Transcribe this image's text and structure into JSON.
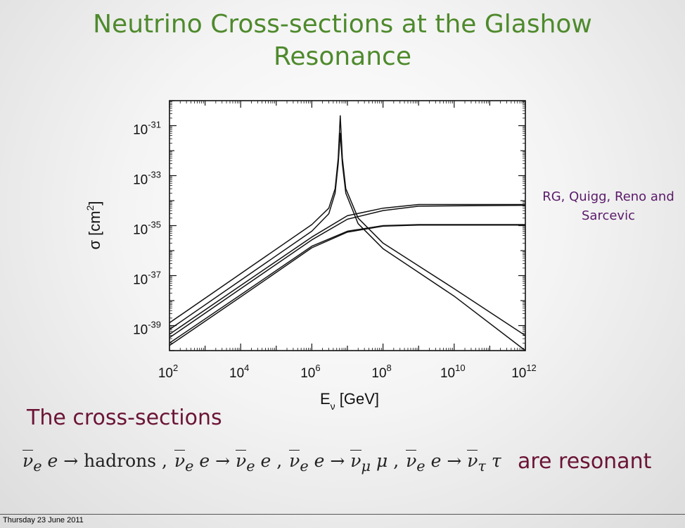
{
  "slide": {
    "title_line1": "Neutrino Cross-sections at the Glashow",
    "title_line2": "Resonance",
    "citation_line1": "RG, Quigg, Reno and",
    "citation_line2": "Sarcevic",
    "cross_sections_text": "The cross-sections",
    "resonant_text": "are resonant",
    "processes": [
      "hadrons",
      "e",
      "μ",
      "τ"
    ],
    "footer_date": "Thursday 23 June 2011"
  },
  "colors": {
    "title": "#4e8a2c",
    "emphasis": "#6b1436",
    "citation": "#5a1a6a"
  },
  "chart_data": {
    "type": "line",
    "xlabel": "E",
    "xlabel_sub": "ν",
    "xlabel_unit": " [GeV]",
    "ylabel": "σ [cm",
    "ylabel_sup": "2",
    "ylabel_end": "]",
    "x_scale": "log",
    "y_scale": "log",
    "xlim": [
      100,
      1000000000000.0
    ],
    "ylim": [
      1e-40,
      1e-30
    ],
    "x_ticks": [
      {
        "base": "10",
        "exp": "2",
        "value": 100
      },
      {
        "base": "10",
        "exp": "4",
        "value": 10000.0
      },
      {
        "base": "10",
        "exp": "6",
        "value": 1000000.0
      },
      {
        "base": "10",
        "exp": "8",
        "value": 100000000.0
      },
      {
        "base": "10",
        "exp": "10",
        "value": 10000000000.0
      },
      {
        "base": "10",
        "exp": "12",
        "value": 1000000000000.0
      }
    ],
    "y_ticks": [
      {
        "base": "10",
        "exp": "-31",
        "value": 1e-31
      },
      {
        "base": "10",
        "exp": "-33",
        "value": 1e-33
      },
      {
        "base": "10",
        "exp": "-35",
        "value": 1e-35
      },
      {
        "base": "10",
        "exp": "-37",
        "value": 1e-37
      },
      {
        "base": "10",
        "exp": "-39",
        "value": 1e-39
      }
    ],
    "series": [
      {
        "values": [
          [
            100,
            1.3e-39
          ],
          [
            10000.0,
            1.2e-37
          ],
          [
            1000000.0,
            1.1e-35
          ],
          [
            3000000.0,
            5e-35
          ],
          [
            4500000.0,
            3e-34
          ],
          [
            5500000.0,
            5e-33
          ],
          [
            6300000.0,
            2.5e-31
          ],
          [
            7200000.0,
            5e-33
          ],
          [
            9000000.0,
            3e-34
          ],
          [
            20000000.0,
            2e-35
          ],
          [
            100000000.0,
            2e-36
          ],
          [
            10000000000.0,
            3e-38
          ],
          [
            1000000000000.0,
            4e-40
          ]
        ]
      },
      {
        "values": [
          [
            100,
            7e-40
          ],
          [
            10000.0,
            6.5e-38
          ],
          [
            1000000.0,
            6e-36
          ],
          [
            3000000.0,
            3e-35
          ],
          [
            4500000.0,
            2e-34
          ],
          [
            5500000.0,
            3e-33
          ],
          [
            6300000.0,
            5e-32
          ],
          [
            7200000.0,
            3e-33
          ],
          [
            9000000.0,
            2e-34
          ],
          [
            20000000.0,
            1.2e-35
          ],
          [
            100000000.0,
            1.2e-36
          ],
          [
            10000000000.0,
            1.5e-38
          ],
          [
            1000000000000.0,
            1e-40
          ]
        ]
      },
      {
        "values": [
          [
            100,
            4.5e-40
          ],
          [
            10000.0,
            4e-38
          ],
          [
            1000000.0,
            3.5e-36
          ],
          [
            10000000.0,
            2.5e-35
          ],
          [
            100000000.0,
            5e-35
          ],
          [
            1000000000.0,
            7e-35
          ],
          [
            1000000000000.0,
            7e-35
          ]
        ]
      },
      {
        "values": [
          [
            100,
            3.3e-40
          ],
          [
            10000.0,
            3e-38
          ],
          [
            1000000.0,
            2.7e-36
          ],
          [
            10000000.0,
            1.8e-35
          ],
          [
            100000000.0,
            4e-35
          ],
          [
            1000000000.0,
            6e-35
          ],
          [
            1000000000000.0,
            6.5e-35
          ]
        ]
      },
      {
        "values": [
          [
            100,
            2e-40
          ],
          [
            10000.0,
            1.7e-38
          ],
          [
            1000000.0,
            1.5e-36
          ],
          [
            10000000.0,
            6e-36
          ],
          [
            100000000.0,
            1e-35
          ],
          [
            1000000000.0,
            1.1e-35
          ],
          [
            1000000000000.0,
            1.1e-35
          ]
        ]
      },
      {
        "values": [
          [
            100,
            1.6e-40
          ],
          [
            10000.0,
            1.4e-38
          ],
          [
            1000000.0,
            1.3e-36
          ],
          [
            10000000.0,
            5.5e-36
          ],
          [
            100000000.0,
            9.5e-36
          ],
          [
            1000000000.0,
            1.05e-35
          ],
          [
            1000000000000.0,
            1.05e-35
          ]
        ]
      }
    ]
  }
}
